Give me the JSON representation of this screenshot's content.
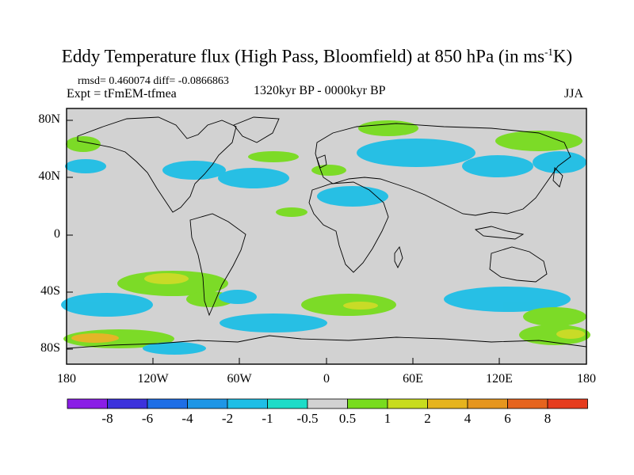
{
  "header": {
    "title_main": "Eddy Temperature flux (High Pass, Bloomfield) at 850 hPa (in ms",
    "title_sup": "-1",
    "title_end": "K)",
    "stats": "rmsd= 0.460074 diff= -0.0866863",
    "experiment": "Expt = tFmEM-tfmea",
    "period": "1320kyr BP - 0000kyr BP",
    "season": "JJA"
  },
  "axes": {
    "y_labels": [
      "80N",
      "40N",
      "0",
      "40S",
      "80S"
    ],
    "x_labels": [
      "180",
      "120W",
      "60W",
      "0",
      "60E",
      "120E",
      "180"
    ]
  },
  "colorbar": {
    "labels": [
      "-8",
      "-6",
      "-4",
      "-2",
      "-1",
      "-0.5",
      "0.5",
      "1",
      "2",
      "4",
      "6",
      "8"
    ],
    "colors": [
      "#8a1ee6",
      "#3c32dc",
      "#1e6ee6",
      "#1e96e6",
      "#1ebee6",
      "#1edcc8",
      "#d2d2d2",
      "#78dc1e",
      "#c8dc1e",
      "#e6b41e",
      "#e6961e",
      "#e6641e",
      "#e63c1e"
    ]
  },
  "map": {
    "background_color": "#d2d2d2",
    "coastline_color": "#000000"
  }
}
